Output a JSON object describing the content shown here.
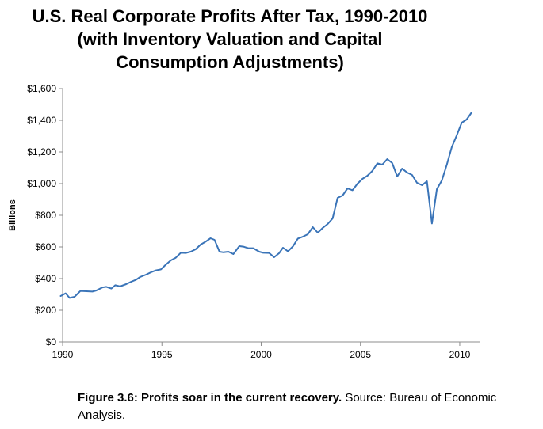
{
  "chart_data": {
    "type": "line",
    "title_lines": [
      "U.S. Real Corporate Profits After Tax, 1990-2010",
      "(with Inventory Valuation and Capital",
      "Consumption Adjustments)"
    ],
    "ylabel": "Billions",
    "xlabel": "",
    "xlim": [
      1990,
      2011
    ],
    "ylim": [
      0,
      1600
    ],
    "x_ticks": [
      1990,
      1995,
      2000,
      2005,
      2010
    ],
    "y_ticks": [
      {
        "value": 0,
        "label": "$0"
      },
      {
        "value": 200,
        "label": "$200"
      },
      {
        "value": 400,
        "label": "$400"
      },
      {
        "value": 600,
        "label": "$600"
      },
      {
        "value": 800,
        "label": "$800"
      },
      {
        "value": 1000,
        "label": "$1,000"
      },
      {
        "value": 1200,
        "label": "$1,200"
      },
      {
        "value": 1400,
        "label": "$1,400"
      },
      {
        "value": 1600,
        "label": "$1,600"
      }
    ],
    "grid": false,
    "series": [
      {
        "color": "#3a74b8",
        "points": [
          [
            1989.9,
            290
          ],
          [
            1990.15,
            307
          ],
          [
            1990.35,
            278
          ],
          [
            1990.6,
            285
          ],
          [
            1990.9,
            322
          ],
          [
            1991.2,
            320
          ],
          [
            1991.5,
            318
          ],
          [
            1991.7,
            325
          ],
          [
            1992.0,
            344
          ],
          [
            1992.2,
            348
          ],
          [
            1992.45,
            337
          ],
          [
            1992.65,
            358
          ],
          [
            1992.9,
            351
          ],
          [
            1993.2,
            365
          ],
          [
            1993.45,
            380
          ],
          [
            1993.7,
            393
          ],
          [
            1993.9,
            410
          ],
          [
            1994.2,
            425
          ],
          [
            1994.45,
            440
          ],
          [
            1994.7,
            452
          ],
          [
            1994.95,
            458
          ],
          [
            1995.2,
            488
          ],
          [
            1995.45,
            515
          ],
          [
            1995.7,
            532
          ],
          [
            1995.95,
            563
          ],
          [
            1996.2,
            562
          ],
          [
            1996.45,
            570
          ],
          [
            1996.7,
            585
          ],
          [
            1996.95,
            615
          ],
          [
            1997.2,
            633
          ],
          [
            1997.45,
            655
          ],
          [
            1997.65,
            645
          ],
          [
            1997.9,
            570
          ],
          [
            1998.1,
            566
          ],
          [
            1998.35,
            570
          ],
          [
            1998.6,
            555
          ],
          [
            1998.9,
            605
          ],
          [
            1999.1,
            602
          ],
          [
            1999.35,
            592
          ],
          [
            1999.6,
            592
          ],
          [
            1999.9,
            570
          ],
          [
            2000.1,
            563
          ],
          [
            2000.4,
            562
          ],
          [
            2000.65,
            535
          ],
          [
            2000.9,
            560
          ],
          [
            2001.1,
            595
          ],
          [
            2001.35,
            572
          ],
          [
            2001.6,
            604
          ],
          [
            2001.85,
            653
          ],
          [
            2002.1,
            665
          ],
          [
            2002.35,
            680
          ],
          [
            2002.6,
            725
          ],
          [
            2002.85,
            690
          ],
          [
            2003.1,
            720
          ],
          [
            2003.35,
            745
          ],
          [
            2003.6,
            780
          ],
          [
            2003.85,
            910
          ],
          [
            2004.1,
            925
          ],
          [
            2004.35,
            970
          ],
          [
            2004.6,
            958
          ],
          [
            2004.85,
            1000
          ],
          [
            2005.1,
            1030
          ],
          [
            2005.35,
            1050
          ],
          [
            2005.6,
            1080
          ],
          [
            2005.85,
            1128
          ],
          [
            2006.1,
            1120
          ],
          [
            2006.35,
            1155
          ],
          [
            2006.6,
            1130
          ],
          [
            2006.85,
            1045
          ],
          [
            2007.1,
            1095
          ],
          [
            2007.35,
            1070
          ],
          [
            2007.6,
            1055
          ],
          [
            2007.85,
            1005
          ],
          [
            2008.1,
            990
          ],
          [
            2008.35,
            1015
          ],
          [
            2008.6,
            748
          ],
          [
            2008.85,
            965
          ],
          [
            2009.1,
            1020
          ],
          [
            2009.35,
            1120
          ],
          [
            2009.6,
            1230
          ],
          [
            2009.85,
            1305
          ],
          [
            2010.1,
            1385
          ],
          [
            2010.35,
            1405
          ],
          [
            2010.6,
            1450
          ]
        ]
      }
    ]
  },
  "caption": {
    "bold": "Figure 3.6: Profits soar in the current recovery.",
    "rest": " Source: Bureau of Economic Analysis."
  }
}
